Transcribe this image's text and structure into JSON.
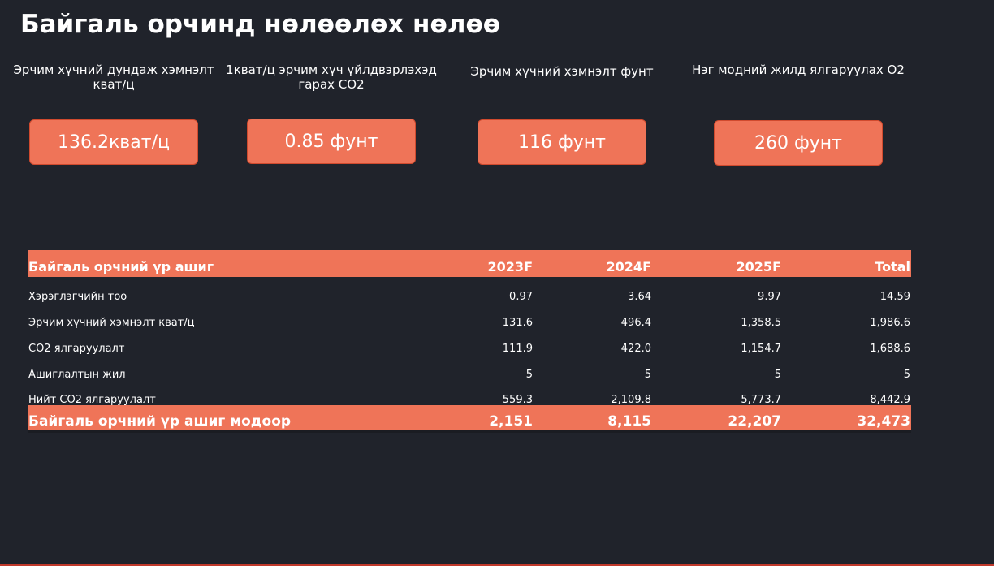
{
  "page": {
    "title": "Байгаль орчинд нөлөөлөх нөлөө"
  },
  "kpis": [
    {
      "label": "Эрчим хүчний дундаж хэмнэлт кват/ц",
      "value": "136.2кват/ц"
    },
    {
      "label": "1кват/ц эрчим хүч үйлдвэрлэхэд гарах CO2",
      "value": "0.85 фунт"
    },
    {
      "label": "Эрчим хүчний хэмнэлт фунт",
      "value": "116 фунт"
    },
    {
      "label": "Нэг модний жилд ялгаруулах O2",
      "value": "260 фунт"
    }
  ],
  "table": {
    "headers": [
      "Байгаль орчний үр ашиг",
      "2023F",
      "2024F",
      "2025F",
      "Total"
    ],
    "rows": [
      [
        "Хэрэглэгчийн тоо",
        "0.97",
        "3.64",
        "9.97",
        "14.59"
      ],
      [
        "Эрчим хүчний хэмнэлт кват/ц",
        "131.6",
        "496.4",
        "1,358.5",
        "1,986.6"
      ],
      [
        "CO2 ялгаруулалт",
        "111.9",
        "422.0",
        "1,154.7",
        "1,688.6"
      ],
      [
        "Ашиглалтын жил",
        "5",
        "5",
        "5",
        "5"
      ],
      [
        "Нийт CO2 ялгаруулалт",
        "559.3",
        "2,109.8",
        "5,773.7",
        "8,442.9"
      ]
    ],
    "total": [
      "Байгаль орчний үр ашиг модоор",
      "2,151",
      "8,115",
      "22,207",
      "32,473"
    ]
  },
  "colors": {
    "background": "#20232b",
    "accent": "#ef7458",
    "text": "#ffffff"
  }
}
